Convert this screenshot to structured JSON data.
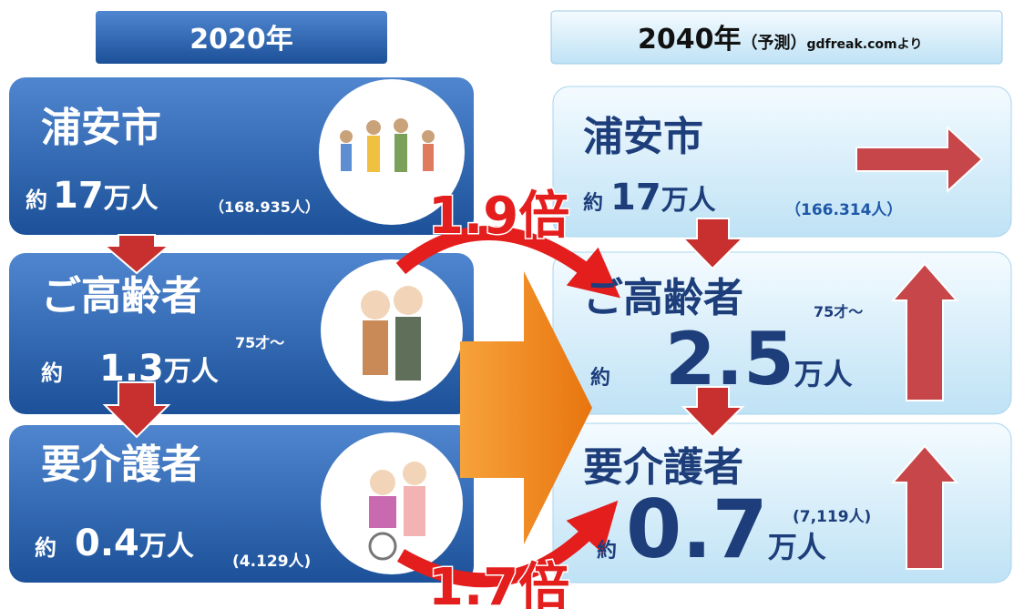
{
  "left": {
    "header": "2020年",
    "cards": [
      {
        "title": "浦安市",
        "prefix": "約",
        "value": 17,
        "unit": "万人",
        "note": "（168.935人）"
      },
      {
        "title": "ご高齢者",
        "prefix": "約",
        "value": 1.3,
        "unit": "万人",
        "note": "75才～"
      },
      {
        "title": "要介護者",
        "prefix": "約",
        "value": 0.4,
        "unit": "万人",
        "note": "(4.129人)"
      }
    ]
  },
  "right": {
    "header": "2040年",
    "header_note": "（予測）",
    "source": "gdfreak.comより",
    "cards": [
      {
        "title": "浦安市",
        "prefix": "約",
        "value": 17,
        "unit": "万人",
        "note": "（166.314人）"
      },
      {
        "title": "ご高齢者",
        "prefix": "約",
        "value": 2.5,
        "unit": "万人",
        "note": "75才～"
      },
      {
        "title": "要介護者",
        "prefix": "約",
        "value": 0.7,
        "unit": "万人",
        "note": "(7,119人)"
      }
    ]
  },
  "ratios": [
    "1.9倍",
    "1.7倍"
  ]
}
